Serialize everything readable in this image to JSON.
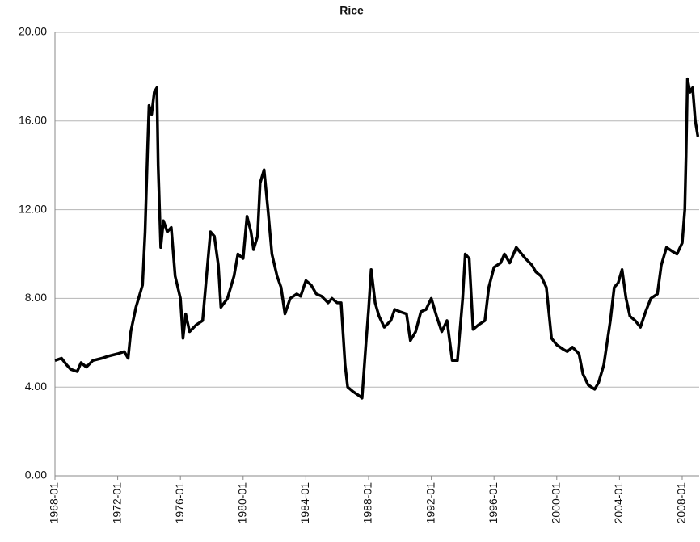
{
  "chart_data": {
    "type": "line",
    "title": "Rice",
    "x": [
      "1968-01",
      "1968-06",
      "1968-10",
      "1969-01",
      "1969-06",
      "1969-09",
      "1970-01",
      "1970-06",
      "1971-01",
      "1971-06",
      "1972-01",
      "1972-06",
      "1972-09",
      "1972-11",
      "1973-03",
      "1973-08",
      "1973-10",
      "1973-12",
      "1974-01",
      "1974-03",
      "1974-05",
      "1974-07",
      "1974-08",
      "1974-10",
      "1974-12",
      "1975-03",
      "1975-06",
      "1975-09",
      "1976-01",
      "1976-03",
      "1976-05",
      "1976-08",
      "1977-01",
      "1977-06",
      "1977-09",
      "1977-12",
      "1978-03",
      "1978-06",
      "1978-08",
      "1979-01",
      "1979-06",
      "1979-09",
      "1980-01",
      "1980-04",
      "1980-07",
      "1980-09",
      "1980-12",
      "1981-02",
      "1981-05",
      "1981-08",
      "1981-11",
      "1982-03",
      "1982-06",
      "1982-09",
      "1983-01",
      "1983-06",
      "1983-09",
      "1984-01",
      "1984-05",
      "1984-09",
      "1985-01",
      "1985-06",
      "1985-09",
      "1986-01",
      "1986-04",
      "1986-07",
      "1986-09",
      "1987-01",
      "1987-06",
      "1987-08",
      "1987-11",
      "1988-01",
      "1988-03",
      "1988-06",
      "1988-09",
      "1989-01",
      "1989-06",
      "1989-09",
      "1990-01",
      "1990-06",
      "1990-09",
      "1991-01",
      "1991-05",
      "1991-09",
      "1992-01",
      "1992-05",
      "1992-09",
      "1993-01",
      "1993-05",
      "1993-09",
      "1994-01",
      "1994-03",
      "1994-06",
      "1994-09",
      "1995-01",
      "1995-06",
      "1995-09",
      "1996-01",
      "1996-06",
      "1996-09",
      "1997-01",
      "1997-06",
      "1998-01",
      "1998-06",
      "1998-09",
      "1999-01",
      "1999-05",
      "1999-09",
      "2000-01",
      "2000-06",
      "2000-09",
      "2001-01",
      "2001-06",
      "2001-09",
      "2002-01",
      "2002-06",
      "2002-09",
      "2003-01",
      "2003-06",
      "2003-09",
      "2003-12",
      "2004-03",
      "2004-06",
      "2004-09",
      "2005-01",
      "2005-05",
      "2005-09",
      "2006-01",
      "2006-06",
      "2006-09",
      "2007-01",
      "2007-06",
      "2007-09",
      "2008-01",
      "2008-03",
      "2008-04",
      "2008-05",
      "2008-07",
      "2008-09",
      "2008-11",
      "2009-01"
    ],
    "series": [
      {
        "name": "Rice",
        "color": "#000000",
        "values": [
          5.2,
          5.3,
          5.0,
          4.8,
          4.7,
          5.1,
          4.9,
          5.2,
          5.3,
          5.4,
          5.5,
          5.6,
          5.3,
          6.5,
          7.6,
          8.6,
          11.0,
          15.0,
          16.7,
          16.3,
          17.3,
          17.5,
          14.0,
          10.3,
          11.5,
          11.0,
          11.2,
          9.0,
          8.0,
          6.2,
          7.3,
          6.5,
          6.8,
          7.0,
          9.0,
          11.0,
          10.8,
          9.5,
          7.6,
          8.0,
          9.0,
          10.0,
          9.8,
          11.7,
          11.0,
          10.2,
          10.8,
          13.2,
          13.8,
          12.0,
          10.0,
          9.0,
          8.5,
          7.3,
          8.0,
          8.2,
          8.1,
          8.8,
          8.6,
          8.2,
          8.1,
          7.8,
          8.0,
          7.8,
          7.8,
          5.0,
          4.0,
          3.8,
          3.6,
          3.5,
          6.0,
          7.5,
          9.3,
          7.8,
          7.2,
          6.7,
          7.0,
          7.5,
          7.4,
          7.3,
          6.1,
          6.5,
          7.4,
          7.5,
          8.0,
          7.2,
          6.5,
          7.0,
          5.2,
          5.2,
          8.0,
          10.0,
          9.8,
          6.6,
          6.8,
          7.0,
          8.5,
          9.4,
          9.6,
          10.0,
          9.6,
          10.3,
          9.8,
          9.5,
          9.2,
          9.0,
          8.5,
          6.2,
          5.9,
          5.7,
          5.6,
          5.8,
          5.5,
          4.6,
          4.1,
          3.9,
          4.2,
          5.0,
          7.0,
          8.5,
          8.7,
          9.3,
          8.0,
          7.2,
          7.0,
          6.7,
          7.4,
          8.0,
          8.2,
          9.5,
          10.3,
          10.1,
          10.0,
          10.5,
          12.0,
          14.5,
          17.9,
          17.3,
          17.5,
          16.0,
          15.3
        ]
      }
    ],
    "xlim": [
      "1968-01",
      "2009-02"
    ],
    "xticks": [
      "1968-01",
      "1972-01",
      "1976-01",
      "1980-01",
      "1984-01",
      "1988-01",
      "1992-01",
      "1996-01",
      "2000-01",
      "2004-01",
      "2008-01"
    ],
    "ylim": [
      0,
      20
    ],
    "yticks": [
      {
        "value": 0,
        "label": "0.00"
      },
      {
        "value": 4,
        "label": "4.00"
      },
      {
        "value": 8,
        "label": "8.00"
      },
      {
        "value": 12,
        "label": "12.00"
      },
      {
        "value": 16,
        "label": "16.00"
      },
      {
        "value": 20,
        "label": "20.00"
      }
    ],
    "grid": true
  }
}
